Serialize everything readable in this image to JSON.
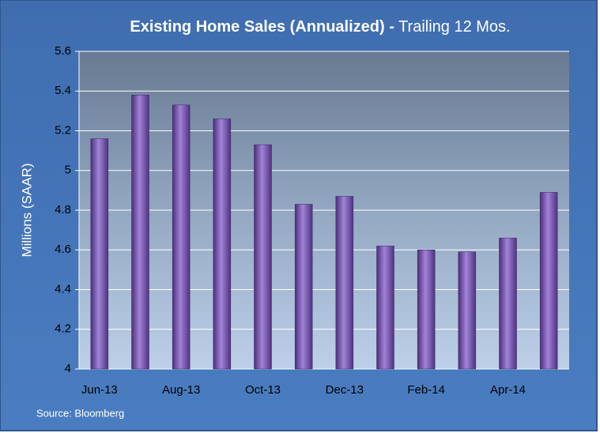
{
  "chart_data": {
    "type": "bar",
    "title": "Existing Home Sales (Annualized) -",
    "subtitle": "Trailing 12 Mos.",
    "y_label": "Millions (SAAR)",
    "source": "Source: Bloomberg",
    "categories": [
      "Jun-13",
      null,
      "Aug-13",
      null,
      "Oct-13",
      null,
      "Dec-13",
      null,
      "Feb-14",
      null,
      "Apr-14",
      null
    ],
    "values": [
      5.16,
      5.38,
      5.33,
      5.26,
      5.13,
      4.83,
      4.87,
      4.62,
      4.6,
      4.59,
      4.66,
      4.89
    ],
    "color": "#7a5cb5",
    "ylim": [
      4,
      5.6
    ],
    "yticks": [
      4,
      4.2,
      4.4,
      4.6,
      4.8,
      5,
      5.2,
      5.4,
      5.6
    ],
    "grid": true
  }
}
